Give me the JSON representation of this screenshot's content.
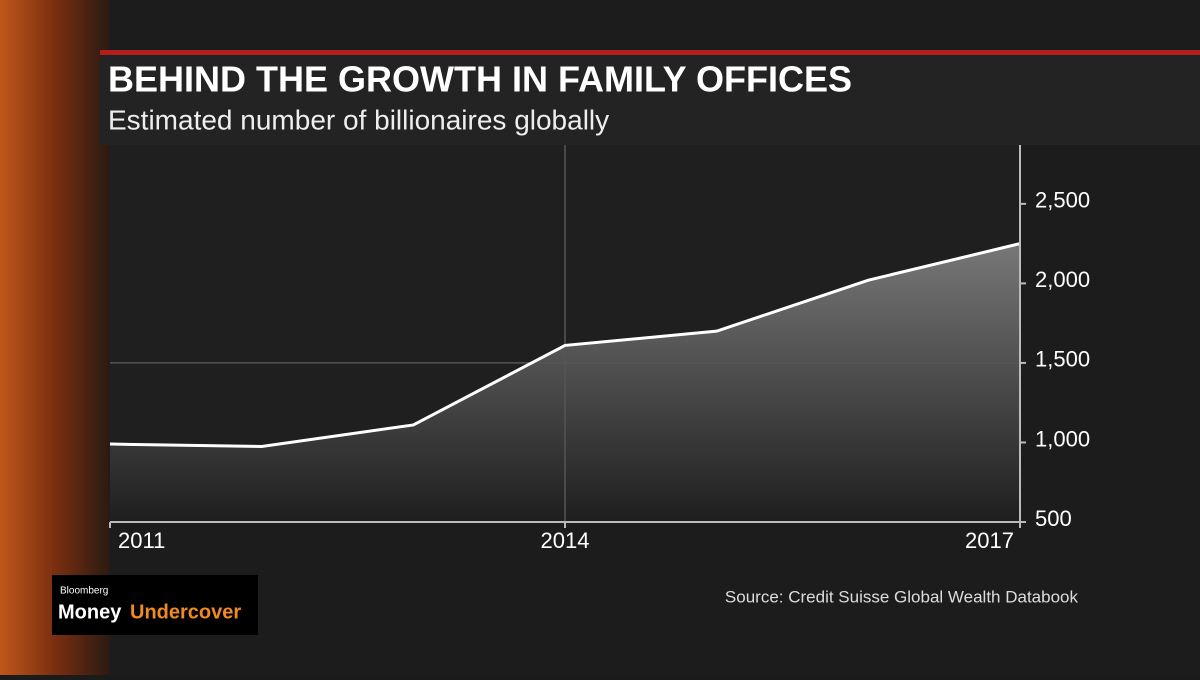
{
  "chart_data": {
    "type": "area",
    "title": "BEHIND THE GROWTH IN FAMILY OFFICES",
    "subtitle": "Estimated number of billionaires globally",
    "x": [
      2011,
      2012,
      2013,
      2014,
      2015,
      2016,
      2017
    ],
    "values": [
      990,
      975,
      1110,
      1610,
      1700,
      2020,
      2250
    ],
    "color": "#ffffff",
    "xlim": [
      2011,
      2017
    ],
    "xticks": [
      2011,
      2014,
      2017
    ],
    "ylim": [
      500,
      2870
    ],
    "yticks": [
      500,
      {
        "value": 1000,
        "label": "1,000"
      },
      {
        "value": 1500,
        "label": "1,500"
      },
      {
        "value": 2000,
        "label": "2,000"
      },
      {
        "value": 2500,
        "label": "2,500"
      }
    ],
    "ygrid": [
      1500
    ],
    "xgrid": [
      2014
    ],
    "source": "Source: Credit Suisse Global Wealth Databook"
  },
  "logo": {
    "brand": "Bloomberg",
    "show_first": "Money",
    "show_second": "Undercover"
  }
}
